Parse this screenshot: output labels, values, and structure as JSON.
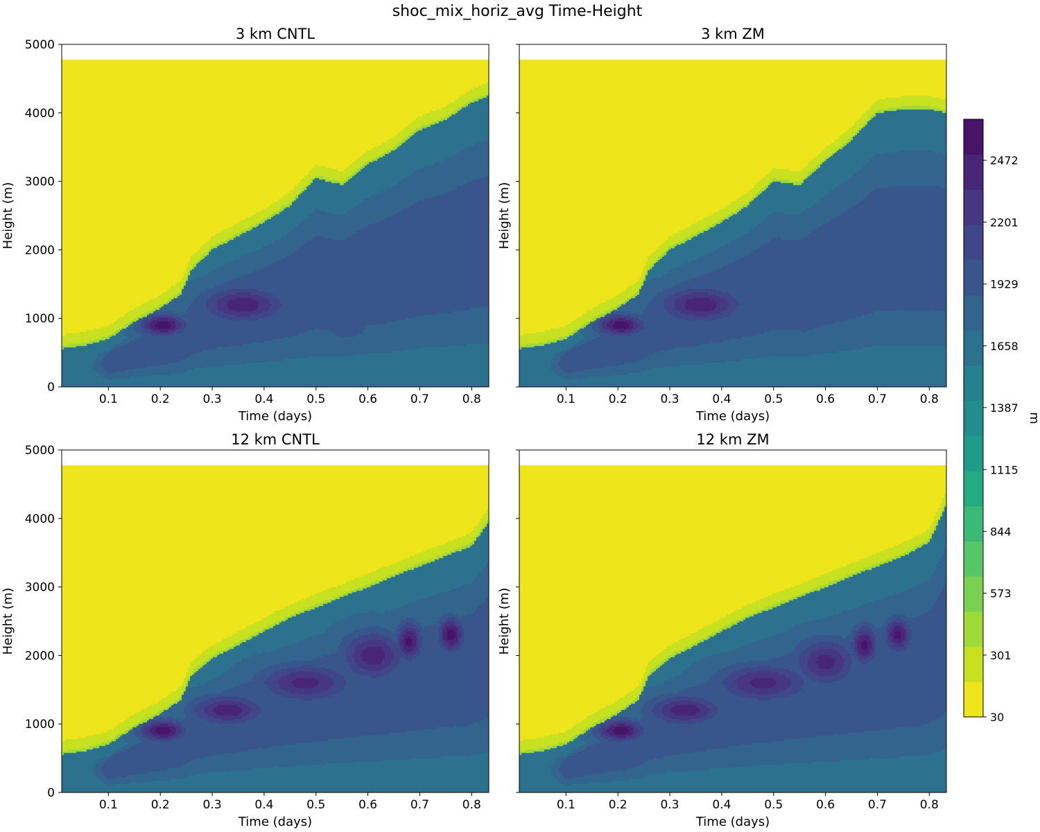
{
  "figure": {
    "title": "shoc_mix_horiz_avg Time-Height"
  },
  "colors": {
    "levels": [
      "#eee51b",
      "#c7e020",
      "#a0da39",
      "#7ad151",
      "#56c667",
      "#3aba76",
      "#25ab82",
      "#1e9c89",
      "#218e8d",
      "#26818e",
      "#2c728e",
      "#32648e",
      "#38568c",
      "#3f4788",
      "#453781",
      "#482576",
      "#481467"
    ],
    "cap": "#ffffff"
  },
  "chart_data": [
    {
      "type": "heatmap",
      "title": "3 km CNTL",
      "xlabel": "Time (days)",
      "ylabel": "Height (m)",
      "xlim": [
        0.01,
        0.833
      ],
      "ylim": [
        0,
        5000
      ],
      "xticks": [
        "0.1",
        "0.2",
        "0.3",
        "0.4",
        "0.5",
        "0.6",
        "0.7",
        "0.8"
      ],
      "yticks": [
        "0",
        "1000",
        "2000",
        "3000",
        "4000",
        "5000"
      ],
      "data_top_height": 4770,
      "pbl_top": [
        [
          0.01,
          560
        ],
        [
          0.05,
          600
        ],
        [
          0.1,
          700
        ],
        [
          0.15,
          950
        ],
        [
          0.2,
          1150
        ],
        [
          0.24,
          1350
        ],
        [
          0.26,
          1700
        ],
        [
          0.3,
          2000
        ],
        [
          0.35,
          2200
        ],
        [
          0.4,
          2400
        ],
        [
          0.45,
          2650
        ],
        [
          0.5,
          3050
        ],
        [
          0.55,
          2950
        ],
        [
          0.6,
          3250
        ],
        [
          0.65,
          3450
        ],
        [
          0.7,
          3750
        ],
        [
          0.75,
          3900
        ],
        [
          0.8,
          4150
        ],
        [
          0.833,
          4250
        ]
      ],
      "cores": [
        {
          "time": 0.205,
          "height": 900,
          "value": 2600,
          "time_spread": 0.045,
          "height_spread": 160
        },
        {
          "time": 0.36,
          "height": 1200,
          "value": 2450,
          "time_spread": 0.08,
          "height_spread": 260
        },
        {
          "time": 0.56,
          "height": 900,
          "value": 2000,
          "time_spread": 0.05,
          "height_spread": 250
        },
        {
          "time": 0.63,
          "height": 2300,
          "value": 1800,
          "time_spread": 0.04,
          "height_spread": 400
        },
        {
          "time": 0.72,
          "height": 2800,
          "value": 1750,
          "time_spread": 0.04,
          "height_spread": 450
        }
      ]
    },
    {
      "type": "heatmap",
      "title": "3 km ZM",
      "xlabel": "Time (days)",
      "ylabel": "Height (m)",
      "xlim": [
        0.01,
        0.833
      ],
      "ylim": [
        0,
        5000
      ],
      "xticks": [
        "0.1",
        "0.2",
        "0.3",
        "0.4",
        "0.5",
        "0.6",
        "0.7",
        "0.8"
      ],
      "yticks": [],
      "data_top_height": 4770,
      "pbl_top": [
        [
          0.01,
          560
        ],
        [
          0.05,
          600
        ],
        [
          0.1,
          700
        ],
        [
          0.15,
          950
        ],
        [
          0.2,
          1150
        ],
        [
          0.24,
          1350
        ],
        [
          0.26,
          1700
        ],
        [
          0.3,
          2000
        ],
        [
          0.35,
          2200
        ],
        [
          0.4,
          2400
        ],
        [
          0.45,
          2650
        ],
        [
          0.5,
          3000
        ],
        [
          0.55,
          2950
        ],
        [
          0.6,
          3300
        ],
        [
          0.65,
          3600
        ],
        [
          0.7,
          4000
        ],
        [
          0.75,
          4050
        ],
        [
          0.8,
          4050
        ],
        [
          0.833,
          4000
        ]
      ],
      "cores": [
        {
          "time": 0.205,
          "height": 900,
          "value": 2600,
          "time_spread": 0.045,
          "height_spread": 160
        },
        {
          "time": 0.36,
          "height": 1200,
          "value": 2450,
          "time_spread": 0.08,
          "height_spread": 260
        },
        {
          "time": 0.56,
          "height": 950,
          "value": 1950,
          "time_spread": 0.05,
          "height_spread": 250
        },
        {
          "time": 0.63,
          "height": 2300,
          "value": 1800,
          "time_spread": 0.04,
          "height_spread": 400
        },
        {
          "time": 0.71,
          "height": 2700,
          "value": 1750,
          "time_spread": 0.04,
          "height_spread": 450
        }
      ]
    },
    {
      "type": "heatmap",
      "title": "12 km CNTL",
      "xlabel": "Time (days)",
      "ylabel": "Height (m)",
      "xlim": [
        0.01,
        0.833
      ],
      "ylim": [
        0,
        5000
      ],
      "xticks": [
        "0.1",
        "0.2",
        "0.3",
        "0.4",
        "0.5",
        "0.6",
        "0.7",
        "0.8"
      ],
      "yticks": [
        "0",
        "1000",
        "2000",
        "3000",
        "4000",
        "5000"
      ],
      "data_top_height": 4770,
      "pbl_top": [
        [
          0.01,
          560
        ],
        [
          0.05,
          600
        ],
        [
          0.1,
          700
        ],
        [
          0.15,
          950
        ],
        [
          0.2,
          1150
        ],
        [
          0.24,
          1350
        ],
        [
          0.26,
          1700
        ],
        [
          0.3,
          1950
        ],
        [
          0.35,
          2150
        ],
        [
          0.4,
          2350
        ],
        [
          0.45,
          2550
        ],
        [
          0.5,
          2700
        ],
        [
          0.55,
          2850
        ],
        [
          0.6,
          3000
        ],
        [
          0.65,
          3150
        ],
        [
          0.7,
          3300
        ],
        [
          0.75,
          3450
        ],
        [
          0.8,
          3600
        ],
        [
          0.833,
          3950
        ]
      ],
      "cores": [
        {
          "time": 0.205,
          "height": 900,
          "value": 2600,
          "time_spread": 0.045,
          "height_spread": 160
        },
        {
          "time": 0.33,
          "height": 1200,
          "value": 2450,
          "time_spread": 0.07,
          "height_spread": 220
        },
        {
          "time": 0.48,
          "height": 1600,
          "value": 2400,
          "time_spread": 0.09,
          "height_spread": 280
        },
        {
          "time": 0.61,
          "height": 2000,
          "value": 2450,
          "time_spread": 0.06,
          "height_spread": 350
        },
        {
          "time": 0.68,
          "height": 2200,
          "value": 2550,
          "time_spread": 0.025,
          "height_spread": 280
        },
        {
          "time": 0.76,
          "height": 2300,
          "value": 2600,
          "time_spread": 0.025,
          "height_spread": 250
        }
      ]
    },
    {
      "type": "heatmap",
      "title": "12 km ZM",
      "xlabel": "Time (days)",
      "ylabel": "Height (m)",
      "xlim": [
        0.01,
        0.833
      ],
      "ylim": [
        0,
        5000
      ],
      "xticks": [
        "0.1",
        "0.2",
        "0.3",
        "0.4",
        "0.5",
        "0.6",
        "0.7",
        "0.8"
      ],
      "yticks": [],
      "data_top_height": 4770,
      "pbl_top": [
        [
          0.01,
          560
        ],
        [
          0.05,
          600
        ],
        [
          0.1,
          700
        ],
        [
          0.15,
          950
        ],
        [
          0.2,
          1150
        ],
        [
          0.24,
          1350
        ],
        [
          0.26,
          1700
        ],
        [
          0.3,
          1950
        ],
        [
          0.35,
          2150
        ],
        [
          0.4,
          2350
        ],
        [
          0.45,
          2550
        ],
        [
          0.5,
          2700
        ],
        [
          0.55,
          2850
        ],
        [
          0.6,
          3000
        ],
        [
          0.65,
          3150
        ],
        [
          0.7,
          3300
        ],
        [
          0.75,
          3450
        ],
        [
          0.8,
          3650
        ],
        [
          0.833,
          4200
        ]
      ],
      "cores": [
        {
          "time": 0.205,
          "height": 900,
          "value": 2600,
          "time_spread": 0.045,
          "height_spread": 160
        },
        {
          "time": 0.33,
          "height": 1200,
          "value": 2450,
          "time_spread": 0.07,
          "height_spread": 220
        },
        {
          "time": 0.48,
          "height": 1600,
          "value": 2400,
          "time_spread": 0.09,
          "height_spread": 280
        },
        {
          "time": 0.6,
          "height": 1900,
          "value": 2400,
          "time_spread": 0.06,
          "height_spread": 350
        },
        {
          "time": 0.675,
          "height": 2150,
          "value": 2550,
          "time_spread": 0.025,
          "height_spread": 280
        },
        {
          "time": 0.74,
          "height": 2300,
          "value": 2550,
          "time_spread": 0.025,
          "height_spread": 250
        }
      ]
    }
  ],
  "colorbar": {
    "label": "m",
    "min": 30,
    "max": 2652,
    "ticks": [
      "30",
      "301",
      "573",
      "844",
      "1115",
      "1387",
      "1658",
      "1929",
      "2201",
      "2472"
    ]
  }
}
